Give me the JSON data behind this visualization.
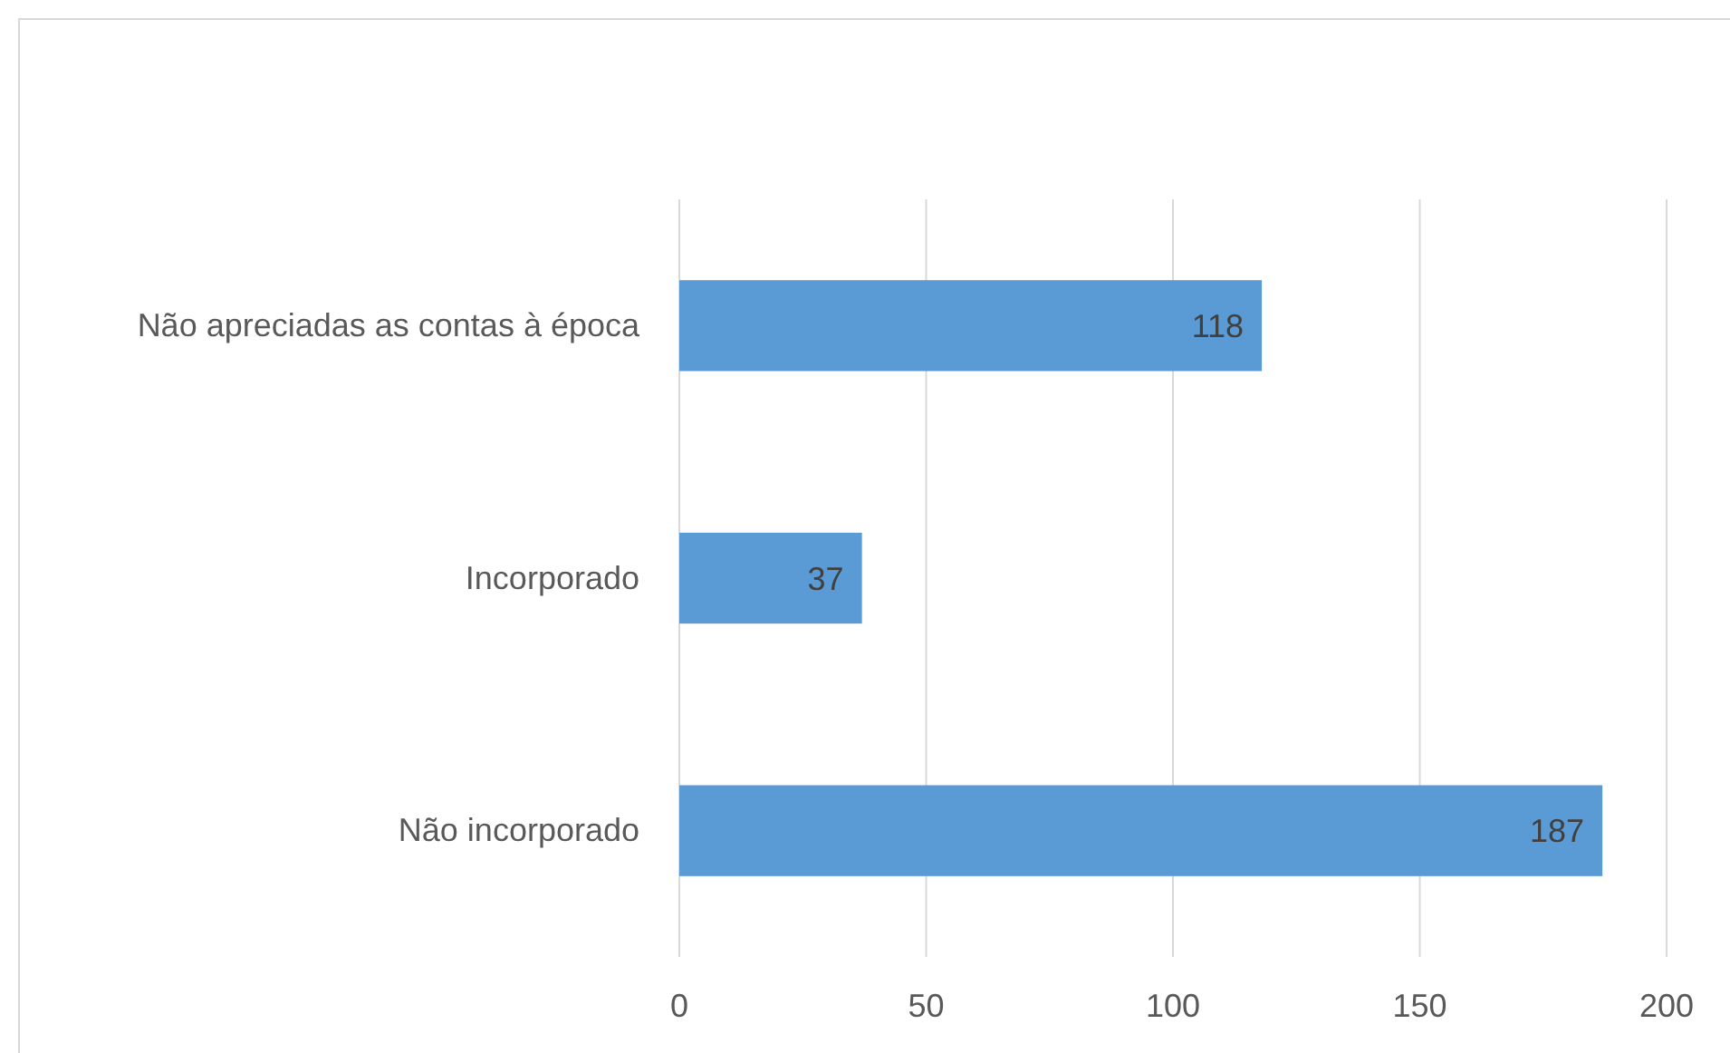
{
  "chart_data": {
    "type": "bar",
    "orientation": "horizontal",
    "categories": [
      "Não apreciadas as contas à época",
      "Incorporado",
      "Não incorporado"
    ],
    "values": [
      118,
      37,
      187
    ],
    "color": "#5b9bd5",
    "xlim": [
      0,
      200
    ],
    "xticks": [
      0,
      50,
      100,
      150,
      200
    ],
    "grid": "x",
    "data_labels": true
  }
}
